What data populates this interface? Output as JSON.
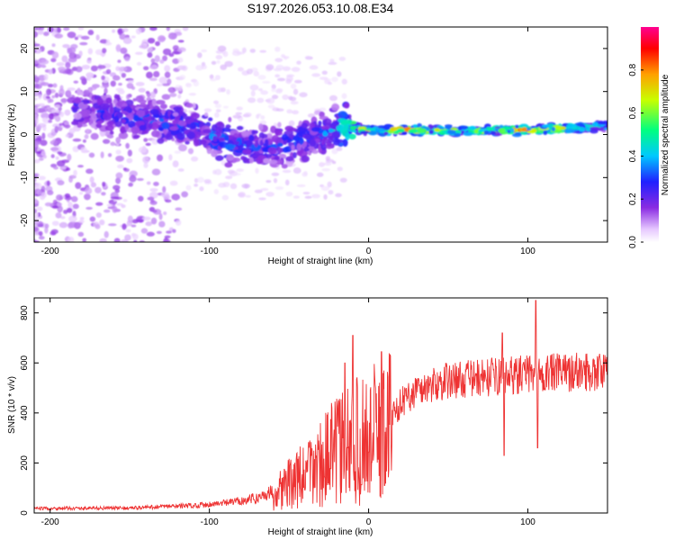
{
  "chart_data": [
    {
      "type": "heatmap",
      "title": "S197.2026.053.10.08.E34",
      "xlabel": "Height of straight line (km)",
      "ylabel": "Frequency (Hz)",
      "xlim": [
        -210,
        150
      ],
      "ylim": [
        -25,
        25
      ],
      "xticks": [
        -200,
        -100,
        0,
        100
      ],
      "yticks": [
        -20,
        -10,
        0,
        10,
        20
      ],
      "colorbar": {
        "label": "Normalized spectral amplitude",
        "range": [
          0,
          1
        ],
        "ticks": [
          "0.0",
          "0.2",
          "0.4",
          "0.6",
          "0.8"
        ],
        "colors": [
          "#ffffff",
          "#e6c8ff",
          "#8a2be2",
          "#2020ff",
          "#00c8ff",
          "#00ff80",
          "#c8ff00",
          "#ffa000",
          "#ff0000",
          "#ff0090"
        ]
      },
      "ridge": [
        {
          "x": -175,
          "y": 6,
          "a": 0.25
        },
        {
          "x": -150,
          "y": 4,
          "a": 0.3
        },
        {
          "x": -130,
          "y": 3,
          "a": 0.3
        },
        {
          "x": -110,
          "y": 2,
          "a": 0.3
        },
        {
          "x": -90,
          "y": -2,
          "a": 0.35
        },
        {
          "x": -70,
          "y": -3,
          "a": 0.3
        },
        {
          "x": -50,
          "y": -2,
          "a": 0.3
        },
        {
          "x": -30,
          "y": 0,
          "a": 0.3
        },
        {
          "x": -15,
          "y": 2,
          "a": 0.5
        },
        {
          "x": 0,
          "y": 1,
          "a": 0.7
        },
        {
          "x": 20,
          "y": 1,
          "a": 0.85
        },
        {
          "x": 50,
          "y": 1,
          "a": 0.6
        },
        {
          "x": 80,
          "y": 1,
          "a": 0.7
        },
        {
          "x": 100,
          "y": 1,
          "a": 0.85
        },
        {
          "x": 150,
          "y": 2,
          "a": 0.5
        }
      ]
    },
    {
      "type": "line",
      "xlabel": "Height of straight line (km)",
      "ylabel": "SNR (10 * v/v)",
      "xlim": [
        -210,
        150
      ],
      "ylim": [
        0,
        860
      ],
      "xticks": [
        -200,
        -100,
        0,
        100
      ],
      "yticks": [
        0,
        200,
        400,
        600,
        800
      ],
      "color": "#ee3333",
      "envelope": [
        {
          "x": -210,
          "y": 18
        },
        {
          "x": -150,
          "y": 20
        },
        {
          "x": -110,
          "y": 30
        },
        {
          "x": -90,
          "y": 40
        },
        {
          "x": -70,
          "y": 60
        },
        {
          "x": -55,
          "y": 100
        },
        {
          "x": -40,
          "y": 150
        },
        {
          "x": -30,
          "y": 200
        },
        {
          "x": -20,
          "y": 250
        },
        {
          "x": -10,
          "y": 280
        },
        {
          "x": 0,
          "y": 300
        },
        {
          "x": 10,
          "y": 340
        },
        {
          "x": 20,
          "y": 440
        },
        {
          "x": 30,
          "y": 490
        },
        {
          "x": 50,
          "y": 530
        },
        {
          "x": 80,
          "y": 545
        },
        {
          "x": 100,
          "y": 555
        },
        {
          "x": 150,
          "y": 570
        }
      ],
      "spikes": [
        {
          "x": -10,
          "y": 710
        },
        {
          "x": -15,
          "y": 600
        },
        {
          "x": 8,
          "y": 645
        },
        {
          "x": 10,
          "y": 110
        },
        {
          "x": 84,
          "y": 720
        },
        {
          "x": 85,
          "y": 230
        },
        {
          "x": 105,
          "y": 850
        },
        {
          "x": 106,
          "y": 260
        }
      ]
    }
  ]
}
